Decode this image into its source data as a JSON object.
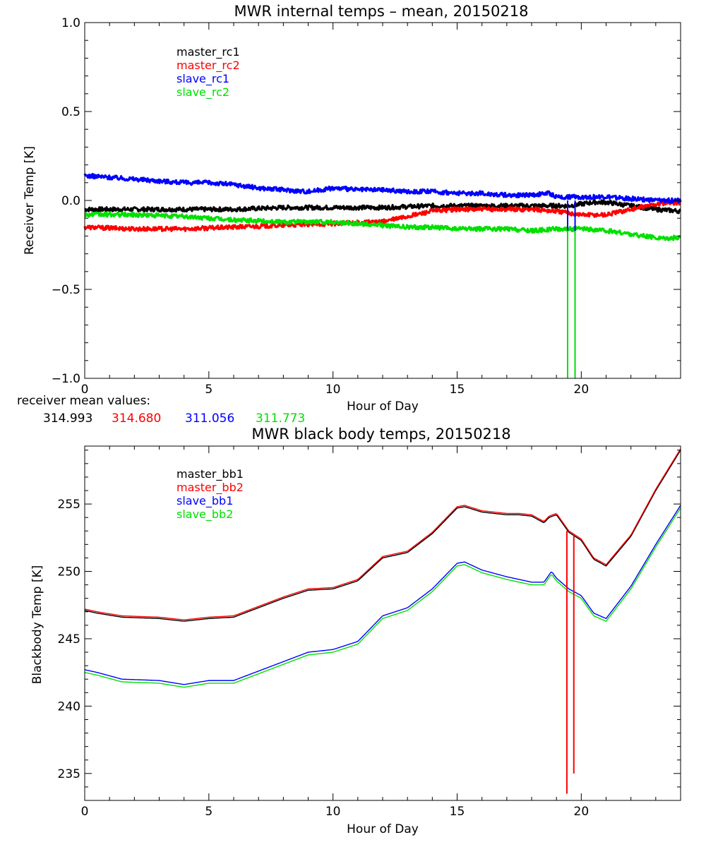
{
  "colors": {
    "black": "#000000",
    "red": "#ff0000",
    "blue": "#0000ff",
    "green": "#00e000"
  },
  "chart_data": [
    {
      "type": "line",
      "title": "MWR internal temps – mean, 20150218",
      "xlabel": "Hour of Day",
      "ylabel": "Receiver Temp [K]",
      "xlim": [
        0,
        24
      ],
      "ylim": [
        -1.0,
        1.0
      ],
      "xticks": [
        0,
        5,
        10,
        15,
        20
      ],
      "yticks": [
        -1.0,
        -0.5,
        0.0,
        0.5,
        1.0
      ],
      "ytick_labels": [
        "−1.0",
        "−0.5",
        "0.0",
        "0.5",
        "1.0"
      ],
      "legend_position": "top-left",
      "series": [
        {
          "name": "master_rc1",
          "color": "#000000",
          "x": [
            0,
            2,
            4,
            6,
            8,
            10,
            12,
            14,
            16,
            18,
            19.5,
            20,
            20.5,
            21,
            22,
            23,
            24
          ],
          "values": [
            -0.05,
            -0.05,
            -0.05,
            -0.05,
            -0.04,
            -0.04,
            -0.04,
            -0.03,
            -0.03,
            -0.03,
            -0.03,
            -0.02,
            -0.01,
            -0.01,
            -0.03,
            -0.05,
            -0.06
          ]
        },
        {
          "name": "master_rc2",
          "color": "#ff0000",
          "x": [
            0,
            2,
            4,
            6,
            8,
            10,
            12,
            13,
            14,
            15,
            16,
            17,
            18,
            19,
            20,
            21,
            22,
            23,
            24
          ],
          "values": [
            -0.15,
            -0.16,
            -0.16,
            -0.15,
            -0.14,
            -0.13,
            -0.12,
            -0.09,
            -0.06,
            -0.05,
            -0.05,
            -0.05,
            -0.05,
            -0.06,
            -0.08,
            -0.08,
            -0.05,
            -0.02,
            -0.01
          ]
        },
        {
          "name": "slave_rc1",
          "color": "#0000ff",
          "x": [
            0,
            1,
            2,
            3,
            4,
            5,
            6,
            7,
            8,
            9,
            10,
            11,
            12,
            13,
            14,
            15,
            16,
            17,
            18,
            18.7,
            19,
            20,
            21,
            22,
            23,
            24
          ],
          "values": [
            0.14,
            0.13,
            0.12,
            0.11,
            0.1,
            0.1,
            0.09,
            0.07,
            0.06,
            0.05,
            0.07,
            0.06,
            0.06,
            0.05,
            0.05,
            0.04,
            0.04,
            0.03,
            0.03,
            0.04,
            0.02,
            0.02,
            0.02,
            0.01,
            0.0,
            0.0
          ]
        },
        {
          "name": "slave_rc2",
          "color": "#00e000",
          "x": [
            0,
            2,
            4,
            6,
            8,
            10,
            11,
            12,
            13,
            14,
            15,
            16,
            17,
            18,
            19,
            20,
            21,
            22,
            23,
            24
          ],
          "values": [
            -0.08,
            -0.08,
            -0.09,
            -0.11,
            -0.12,
            -0.12,
            -0.13,
            -0.14,
            -0.15,
            -0.15,
            -0.16,
            -0.16,
            -0.16,
            -0.17,
            -0.16,
            -0.16,
            -0.17,
            -0.19,
            -0.21,
            -0.21
          ]
        }
      ],
      "spikes": [
        {
          "color": "#00e000",
          "x": 19.45,
          "y0": -0.17,
          "y1": -1.0
        },
        {
          "color": "#00e000",
          "x": 19.75,
          "y0": -0.17,
          "y1": -1.0
        },
        {
          "color": "#0000ff",
          "x": 19.45,
          "y0": 0.0,
          "y1": -0.17
        },
        {
          "color": "#0000ff",
          "x": 19.75,
          "y0": 0.0,
          "y1": -0.17
        }
      ]
    },
    {
      "type": "line",
      "title": "MWR black body temps, 20150218",
      "xlabel": "Hour of Day",
      "ylabel": "Blackbody Temp [K]",
      "xlim": [
        0,
        24
      ],
      "ylim": [
        233,
        259.3
      ],
      "xticks": [
        0,
        5,
        10,
        15,
        20
      ],
      "yticks": [
        235,
        240,
        245,
        250,
        255
      ],
      "ytick_labels": [
        "235",
        "240",
        "245",
        "250",
        "255"
      ],
      "legend_position": "top-left",
      "series": [
        {
          "name": "master_bb1",
          "color": "#000000",
          "x": [
            0,
            0.5,
            1.5,
            3,
            4,
            5,
            6,
            7,
            8,
            9,
            10,
            11,
            12,
            13,
            14,
            15,
            15.3,
            16,
            17,
            17.5,
            18,
            18.5,
            18.7,
            19,
            19.5,
            20,
            20.5,
            21,
            22,
            23,
            24
          ],
          "values": [
            247.1,
            246.9,
            246.6,
            246.5,
            246.3,
            246.5,
            246.6,
            247.3,
            248.0,
            248.6,
            248.7,
            249.3,
            251.0,
            251.4,
            252.8,
            254.7,
            254.8,
            254.4,
            254.2,
            254.2,
            254.1,
            253.6,
            254.0,
            254.2,
            252.9,
            252.3,
            250.9,
            250.4,
            252.6,
            256.0,
            259.0
          ]
        },
        {
          "name": "master_bb2",
          "color": "#ff0000",
          "x": [
            0,
            0.5,
            1.5,
            3,
            4,
            5,
            6,
            7,
            8,
            9,
            10,
            11,
            12,
            13,
            14,
            15,
            15.3,
            16,
            17,
            17.5,
            18,
            18.5,
            18.7,
            19,
            19.5,
            20,
            20.5,
            21,
            22,
            23,
            24
          ],
          "values": [
            247.2,
            247.0,
            246.7,
            246.6,
            246.4,
            246.6,
            246.7,
            247.4,
            248.1,
            248.7,
            248.8,
            249.4,
            251.1,
            251.5,
            252.9,
            254.8,
            254.9,
            254.5,
            254.3,
            254.3,
            254.2,
            253.7,
            254.1,
            254.3,
            253.0,
            252.4,
            251.0,
            250.5,
            252.7,
            256.1,
            259.1
          ]
        },
        {
          "name": "slave_bb1",
          "color": "#0000ff",
          "x": [
            0,
            0.5,
            1.5,
            3,
            4,
            5,
            6,
            7,
            8,
            9,
            10,
            11,
            12,
            13,
            14,
            15,
            15.3,
            16,
            17,
            18,
            18.5,
            18.8,
            19,
            19.5,
            20,
            20.5,
            21,
            22,
            23,
            24
          ],
          "values": [
            242.7,
            242.5,
            242.0,
            241.9,
            241.6,
            241.9,
            241.9,
            242.6,
            243.3,
            244.0,
            244.2,
            244.8,
            246.7,
            247.3,
            248.7,
            250.6,
            250.7,
            250.1,
            249.6,
            249.2,
            249.2,
            250.0,
            249.5,
            248.7,
            248.2,
            246.9,
            246.5,
            248.9,
            252.0,
            254.9
          ]
        },
        {
          "name": "slave_bb2",
          "color": "#00e000",
          "x": [
            0,
            0.5,
            1.5,
            3,
            4,
            5,
            6,
            7,
            8,
            9,
            10,
            11,
            12,
            13,
            14,
            15,
            15.3,
            16,
            17,
            18,
            18.5,
            18.8,
            19,
            19.5,
            20,
            20.5,
            21,
            22,
            23,
            24
          ],
          "values": [
            242.5,
            242.3,
            241.8,
            241.7,
            241.4,
            241.7,
            241.7,
            242.4,
            243.1,
            243.8,
            244.0,
            244.6,
            246.5,
            247.1,
            248.5,
            250.4,
            250.5,
            249.9,
            249.4,
            249.0,
            249.0,
            249.8,
            249.3,
            248.5,
            248.0,
            246.7,
            246.3,
            248.7,
            251.8,
            254.7
          ]
        }
      ],
      "spikes": [
        {
          "color": "#ff0000",
          "x": 19.42,
          "y0": 253.0,
          "y1": 233.5
        },
        {
          "color": "#ff0000",
          "x": 19.7,
          "y0": 252.6,
          "y1": 235.0
        }
      ]
    }
  ],
  "receiver_mean": {
    "label": "receiver mean values:",
    "values": [
      {
        "text": "314.993",
        "color": "#000000"
      },
      {
        "text": "314.680",
        "color": "#ff0000"
      },
      {
        "text": "311.056",
        "color": "#0000ff"
      },
      {
        "text": "311.773",
        "color": "#00e000"
      }
    ]
  }
}
